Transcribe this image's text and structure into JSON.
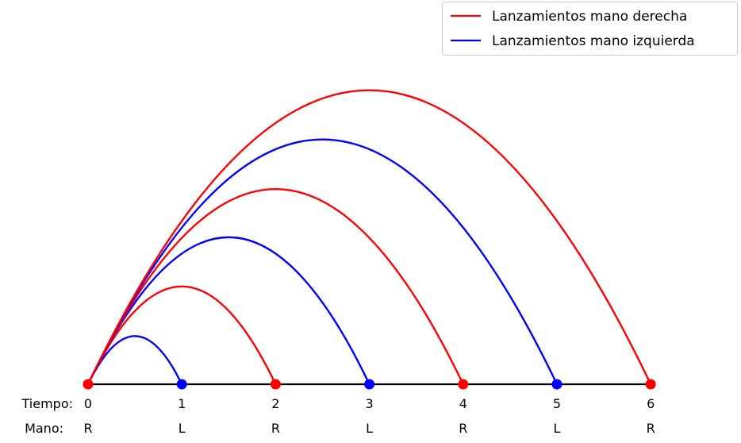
{
  "legend": {
    "right_hand_label": "Lanzamientos mano derecha",
    "left_hand_label": "Lanzamientos mano izquierda"
  },
  "row_labels": {
    "time": "Tiempo:",
    "hand": "Mano:"
  },
  "beats": [
    {
      "time": "0",
      "hand": "R"
    },
    {
      "time": "1",
      "hand": "L"
    },
    {
      "time": "2",
      "hand": "R"
    },
    {
      "time": "3",
      "hand": "L"
    },
    {
      "time": "4",
      "hand": "R"
    },
    {
      "time": "5",
      "hand": "L"
    },
    {
      "time": "6",
      "hand": "R"
    }
  ],
  "throws": [
    {
      "start": 0,
      "end": 1,
      "hand": "L",
      "height": 1.0
    },
    {
      "start": 0,
      "end": 2,
      "hand": "R",
      "height": 2.03
    },
    {
      "start": 0,
      "end": 3,
      "hand": "L",
      "height": 3.05
    },
    {
      "start": 0,
      "end": 4,
      "hand": "R",
      "height": 4.05
    },
    {
      "start": 0,
      "end": 5,
      "hand": "L",
      "height": 5.08
    },
    {
      "start": 0,
      "end": 6,
      "hand": "R",
      "height": 6.1
    }
  ],
  "colors": {
    "R": "#ff0000",
    "L": "#0000ff",
    "baseline": "#000000",
    "legend_border": "#cccccc"
  }
}
